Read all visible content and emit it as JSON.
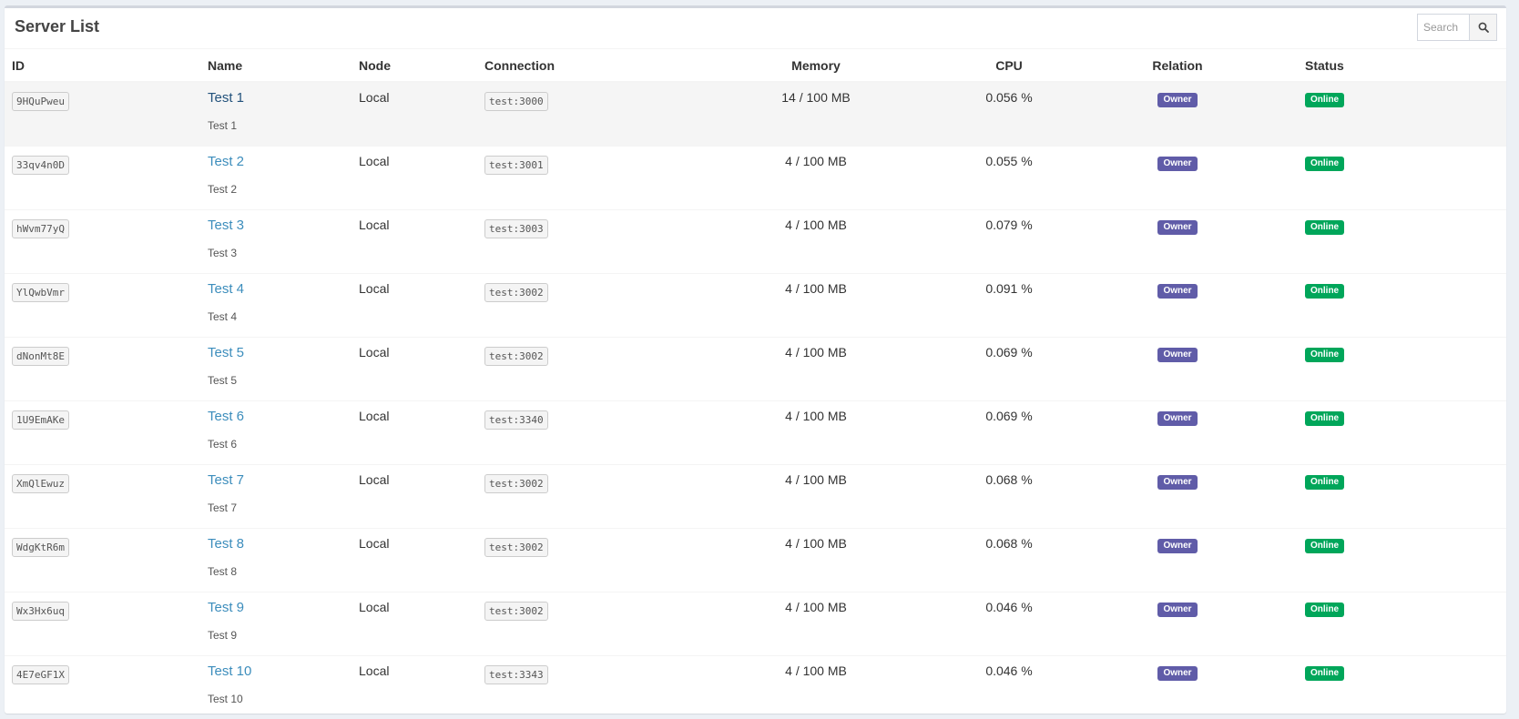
{
  "title": "Server List",
  "search": {
    "placeholder": "Search"
  },
  "columns": {
    "id": "ID",
    "name": "Name",
    "node": "Node",
    "connection": "Connection",
    "memory": "Memory",
    "cpu": "CPU",
    "relation": "Relation",
    "status": "Status"
  },
  "colors": {
    "owner": "#605ca8",
    "online": "#00a65a",
    "link": "#3c8dbc"
  },
  "servers": [
    {
      "id": "9HQuPweu",
      "name": "Test 1",
      "description": "Test 1",
      "node": "Local",
      "connection": "test:3000",
      "memory": "14 / 100 MB",
      "cpu": "0.056 %",
      "relation": "Owner",
      "status": "Online"
    },
    {
      "id": "33qv4n0D",
      "name": "Test 2",
      "description": "Test 2",
      "node": "Local",
      "connection": "test:3001",
      "memory": "4 / 100 MB",
      "cpu": "0.055 %",
      "relation": "Owner",
      "status": "Online"
    },
    {
      "id": "hWvm77yQ",
      "name": "Test 3",
      "description": "Test 3",
      "node": "Local",
      "connection": "test:3003",
      "memory": "4 / 100 MB",
      "cpu": "0.079 %",
      "relation": "Owner",
      "status": "Online"
    },
    {
      "id": "YlQwbVmr",
      "name": "Test 4",
      "description": "Test 4",
      "node": "Local",
      "connection": "test:3002",
      "memory": "4 / 100 MB",
      "cpu": "0.091 %",
      "relation": "Owner",
      "status": "Online"
    },
    {
      "id": "dNonMt8E",
      "name": "Test 5",
      "description": "Test 5",
      "node": "Local",
      "connection": "test:3002",
      "memory": "4 / 100 MB",
      "cpu": "0.069 %",
      "relation": "Owner",
      "status": "Online"
    },
    {
      "id": "1U9EmAKe",
      "name": "Test 6",
      "description": "Test 6",
      "node": "Local",
      "connection": "test:3340",
      "memory": "4 / 100 MB",
      "cpu": "0.069 %",
      "relation": "Owner",
      "status": "Online"
    },
    {
      "id": "XmQlEwuz",
      "name": "Test 7",
      "description": "Test 7",
      "node": "Local",
      "connection": "test:3002",
      "memory": "4 / 100 MB",
      "cpu": "0.068 %",
      "relation": "Owner",
      "status": "Online"
    },
    {
      "id": "WdgKtR6m",
      "name": "Test 8",
      "description": "Test 8",
      "node": "Local",
      "connection": "test:3002",
      "memory": "4 / 100 MB",
      "cpu": "0.068 %",
      "relation": "Owner",
      "status": "Online"
    },
    {
      "id": "Wx3Hx6uq",
      "name": "Test 9",
      "description": "Test 9",
      "node": "Local",
      "connection": "test:3002",
      "memory": "4 / 100 MB",
      "cpu": "0.046 %",
      "relation": "Owner",
      "status": "Online"
    },
    {
      "id": "4E7eGF1X",
      "name": "Test 10",
      "description": "Test 10",
      "node": "Local",
      "connection": "test:3343",
      "memory": "4 / 100 MB",
      "cpu": "0.046 %",
      "relation": "Owner",
      "status": "Online"
    }
  ]
}
